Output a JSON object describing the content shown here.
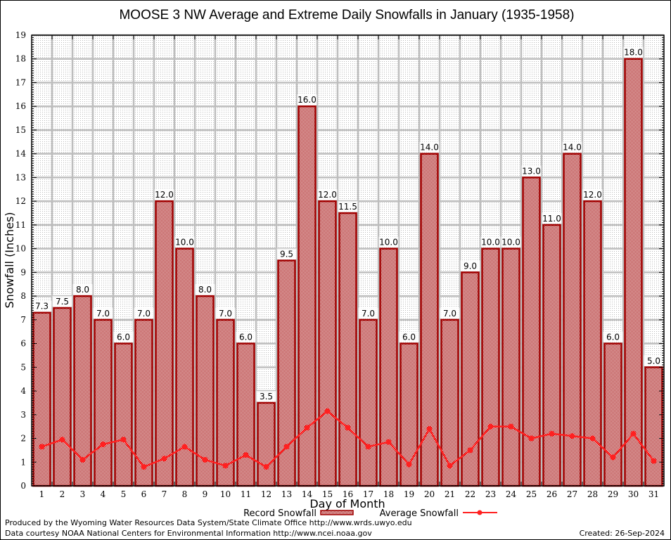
{
  "chart_data": {
    "type": "bar",
    "title": "MOOSE 3 NW Average and Extreme Daily Snowfalls in January (1935-1958)",
    "xlabel": "Day of Month",
    "ylabel": "Snowfall (Inches)",
    "ylim": [
      0,
      19
    ],
    "yticks": [
      "0",
      "1",
      "2",
      "3",
      "4",
      "5",
      "6",
      "7",
      "8",
      "9",
      "10",
      "11",
      "12",
      "13",
      "14",
      "15",
      "16",
      "17",
      "18",
      "19"
    ],
    "grid": true,
    "legend_position": "bottom",
    "categories": [
      "1",
      "2",
      "3",
      "4",
      "5",
      "6",
      "7",
      "8",
      "9",
      "10",
      "11",
      "12",
      "13",
      "14",
      "15",
      "16",
      "17",
      "18",
      "19",
      "20",
      "21",
      "22",
      "23",
      "24",
      "25",
      "26",
      "27",
      "28",
      "29",
      "30",
      "31"
    ],
    "series": [
      {
        "name": "Record Snowfall",
        "type": "bar",
        "color": "#a00000",
        "values": [
          7.3,
          7.5,
          8.0,
          7.0,
          6.0,
          7.0,
          12.0,
          10.0,
          8.0,
          7.0,
          6.0,
          3.5,
          9.5,
          16.0,
          12.0,
          11.5,
          7.0,
          10.0,
          6.0,
          14.0,
          7.0,
          9.0,
          10.0,
          10.0,
          13.0,
          11.0,
          14.0,
          12.0,
          6.0,
          18.0,
          5.0
        ],
        "labels": [
          "7.3",
          "7.5",
          "8.0",
          "7.0",
          "6.0",
          "7.0",
          "12.0",
          "10.0",
          "8.0",
          "7.0",
          "6.0",
          "3.5",
          "9.5",
          "16.0",
          "12.0",
          "11.5",
          "7.0",
          "10.0",
          "6.0",
          "14.0",
          "7.0",
          "9.0",
          "10.0",
          "10.0",
          "13.0",
          "11.0",
          "14.0",
          "12.0",
          "6.0",
          "18.0",
          "5.0"
        ]
      },
      {
        "name": "Average Snowfall",
        "type": "line",
        "color": "#ff2020",
        "values": [
          1.65,
          1.95,
          1.1,
          1.75,
          1.95,
          0.8,
          1.15,
          1.65,
          1.1,
          0.85,
          1.3,
          0.8,
          1.65,
          2.45,
          3.15,
          2.45,
          1.65,
          1.85,
          0.9,
          2.4,
          0.85,
          1.5,
          2.5,
          2.5,
          2.0,
          2.2,
          2.1,
          2.0,
          1.2,
          2.2,
          1.05
        ]
      }
    ]
  },
  "footer": {
    "produced_by": "Produced by the Wyoming Water Resources Data System/State Climate Office http://www.wrds.uwyo.edu",
    "data_courtesy": "Data courtesy NOAA National Centers for Environmental Information http://www.ncei.noaa.gov",
    "created": "Created: 26-Sep-2024"
  }
}
